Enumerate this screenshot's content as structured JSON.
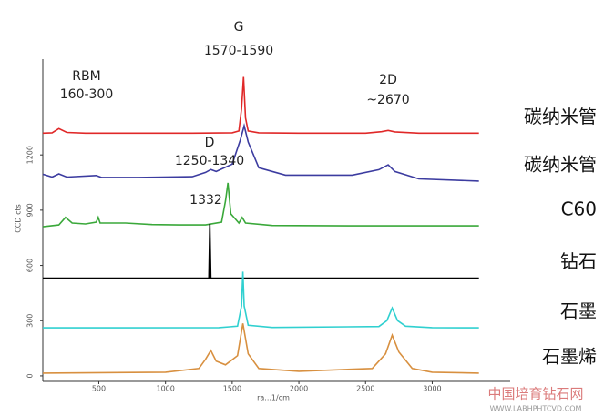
{
  "chart_data": {
    "type": "line",
    "xlabel": "ra...1/cm",
    "ylabel": "CCD cts",
    "xlim": [
      80,
      3400
    ],
    "ylim": [
      -30,
      1720
    ],
    "xticks": [
      500,
      1000,
      1500,
      2000,
      2500,
      3000
    ],
    "yticks": [
      0,
      300,
      600,
      900,
      1200
    ],
    "annotations": [
      "RBM",
      "160-300",
      "G",
      "1570-1590",
      "2D",
      "~2670",
      "D",
      "1250-1340",
      "1332"
    ],
    "watermark": [
      "中国培育钻石网",
      "WWW.LABHPHTCVD.COM"
    ],
    "series": [
      {
        "name": "碳纳米管",
        "color": "#e02828",
        "x": [
          80,
          150,
          200,
          260,
          400,
          800,
          1200,
          1500,
          1550,
          1570,
          1585,
          1600,
          1620,
          1700,
          2000,
          2500,
          2620,
          2670,
          2720,
          2900,
          3350
        ],
        "values": [
          1318,
          1320,
          1343,
          1322,
          1318,
          1318,
          1318,
          1320,
          1330,
          1450,
          1623,
          1400,
          1330,
          1320,
          1318,
          1318,
          1326,
          1333,
          1325,
          1318,
          1318
        ]
      },
      {
        "name": "碳纳米管",
        "color": "#3c3ca0",
        "x": [
          80,
          150,
          200,
          260,
          480,
          520,
          800,
          1200,
          1300,
          1340,
          1380,
          1500,
          1560,
          1590,
          1620,
          1700,
          1900,
          2400,
          2600,
          2670,
          2720,
          2900,
          3350
        ],
        "values": [
          1095,
          1080,
          1097,
          1080,
          1088,
          1078,
          1078,
          1082,
          1105,
          1121,
          1110,
          1150,
          1280,
          1358,
          1270,
          1130,
          1090,
          1090,
          1120,
          1146,
          1110,
          1070,
          1058
        ]
      },
      {
        "name": "C60",
        "color": "#3aa83a",
        "x": [
          80,
          200,
          250,
          300,
          400,
          480,
          495,
          510,
          700,
          900,
          1100,
          1300,
          1420,
          1450,
          1468,
          1490,
          1550,
          1575,
          1600,
          1800,
          2500,
          3350
        ],
        "values": [
          810,
          820,
          861,
          830,
          825,
          835,
          861,
          830,
          830,
          822,
          820,
          820,
          835,
          950,
          1048,
          880,
          830,
          861,
          830,
          817,
          815,
          815
        ]
      },
      {
        "name": "钻石",
        "color": "#000000",
        "x": [
          80,
          1300,
          1325,
          1332,
          1340,
          3350
        ],
        "values": [
          531,
          531,
          531,
          826,
          531,
          531
        ]
      },
      {
        "name": "石墨",
        "color": "#30d0d0",
        "x": [
          80,
          1400,
          1540,
          1570,
          1580,
          1590,
          1620,
          1800,
          2600,
          2660,
          2700,
          2740,
          2800,
          3000,
          3350
        ],
        "values": [
          261,
          262,
          270,
          380,
          566,
          380,
          275,
          263,
          268,
          300,
          369,
          300,
          270,
          262,
          261
        ]
      },
      {
        "name": "石墨烯",
        "color": "#d89040",
        "x": [
          80,
          1000,
          1250,
          1300,
          1340,
          1380,
          1450,
          1540,
          1580,
          1620,
          1700,
          2000,
          2550,
          2650,
          2700,
          2750,
          2850,
          3000,
          3350
        ],
        "values": [
          15,
          20,
          40,
          90,
          138,
          80,
          60,
          110,
          285,
          120,
          40,
          25,
          40,
          120,
          221,
          130,
          40,
          20,
          15
        ]
      }
    ]
  }
}
